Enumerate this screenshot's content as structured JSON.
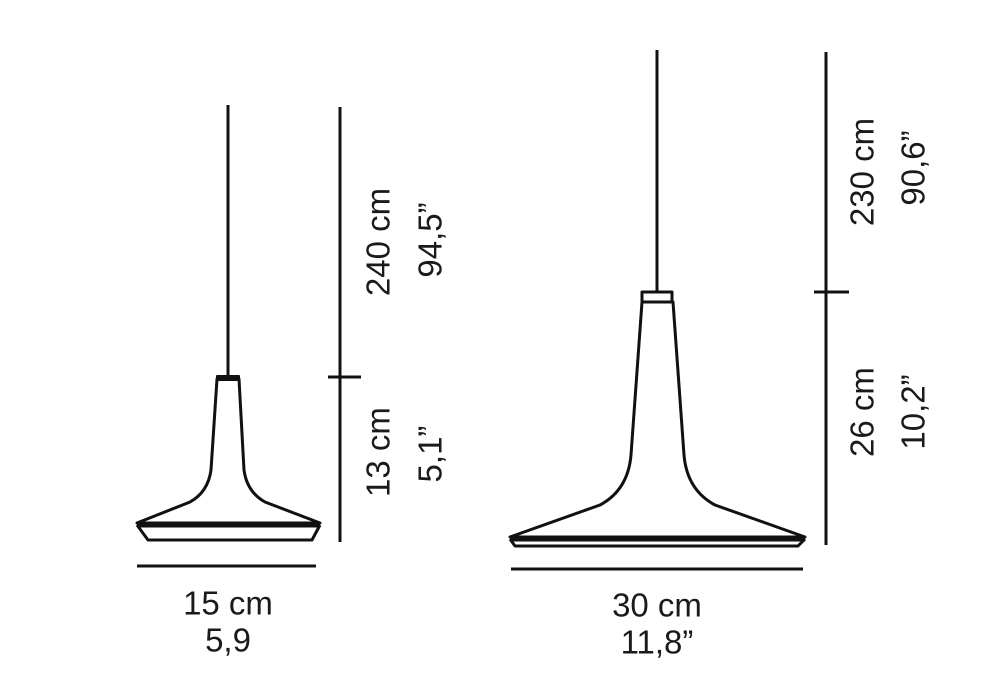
{
  "small_lamp": {
    "cable_length_cm": "240 cm",
    "cable_length_in": "94,5”",
    "height_cm": "13 cm",
    "height_in": "5,1”",
    "width_cm": "15 cm",
    "width_in": "5,9"
  },
  "large_lamp": {
    "cable_length_cm": "230 cm",
    "cable_length_in": "90,6”",
    "height_cm": "26 cm",
    "height_in": "10,2”",
    "width_cm": "30 cm",
    "width_in": "11,8”"
  },
  "colors": {
    "line": "#111111"
  }
}
